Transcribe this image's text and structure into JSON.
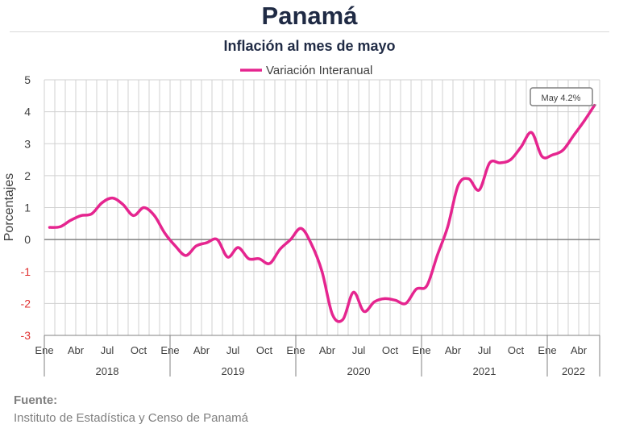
{
  "title": "Panamá",
  "subtitle": "Inflación al mes de mayo",
  "source": {
    "heading": "Fuente:",
    "text": "Instituto de Estadística y Censo de Panamá"
  },
  "chart_data": {
    "type": "line",
    "ylabel": "Porcentajes",
    "ylim": [
      -3,
      5
    ],
    "yticks": [
      -3,
      -2,
      -1,
      0,
      1,
      2,
      3,
      4,
      5
    ],
    "grid": true,
    "legend_position": "top-center",
    "x_tick_labels": [
      "Ene",
      "Abr",
      "Jul",
      "Oct",
      "Ene",
      "Abr",
      "Jul",
      "Oct",
      "Ene",
      "Abr",
      "Jul",
      "Oct",
      "Ene",
      "Abr",
      "Jul",
      "Oct",
      "Ene",
      "Abr"
    ],
    "year_labels": [
      "2018",
      "2019",
      "2020",
      "2021",
      "2022"
    ],
    "annotation": "May 4.2%",
    "series": [
      {
        "name": "Variación Interanual",
        "color": "#e5258f",
        "x": [
          "2018-01",
          "2018-02",
          "2018-03",
          "2018-04",
          "2018-05",
          "2018-06",
          "2018-07",
          "2018-08",
          "2018-09",
          "2018-10",
          "2018-11",
          "2018-12",
          "2019-01",
          "2019-02",
          "2019-03",
          "2019-04",
          "2019-05",
          "2019-06",
          "2019-07",
          "2019-08",
          "2019-09",
          "2019-10",
          "2019-11",
          "2019-12",
          "2020-01",
          "2020-02",
          "2020-03",
          "2020-04",
          "2020-05",
          "2020-06",
          "2020-07",
          "2020-08",
          "2020-09",
          "2020-10",
          "2020-11",
          "2020-12",
          "2021-01",
          "2021-02",
          "2021-03",
          "2021-04",
          "2021-05",
          "2021-06",
          "2021-07",
          "2021-08",
          "2021-09",
          "2021-10",
          "2021-11",
          "2021-12",
          "2022-01",
          "2022-02",
          "2022-03",
          "2022-04",
          "2022-05"
        ],
        "values": [
          0.38,
          0.4,
          0.6,
          0.75,
          0.8,
          1.15,
          1.3,
          1.1,
          0.75,
          1.0,
          0.75,
          0.2,
          -0.2,
          -0.5,
          -0.2,
          -0.1,
          0.0,
          -0.55,
          -0.25,
          -0.6,
          -0.6,
          -0.75,
          -0.3,
          0.0,
          0.35,
          -0.15,
          -1.0,
          -2.35,
          -2.5,
          -1.65,
          -2.25,
          -1.95,
          -1.85,
          -1.9,
          -2.0,
          -1.55,
          -1.45,
          -0.5,
          0.4,
          1.7,
          1.9,
          1.55,
          2.4,
          2.4,
          2.5,
          2.9,
          3.35,
          2.6,
          2.65,
          2.8,
          3.25,
          3.7,
          4.2
        ]
      }
    ]
  }
}
